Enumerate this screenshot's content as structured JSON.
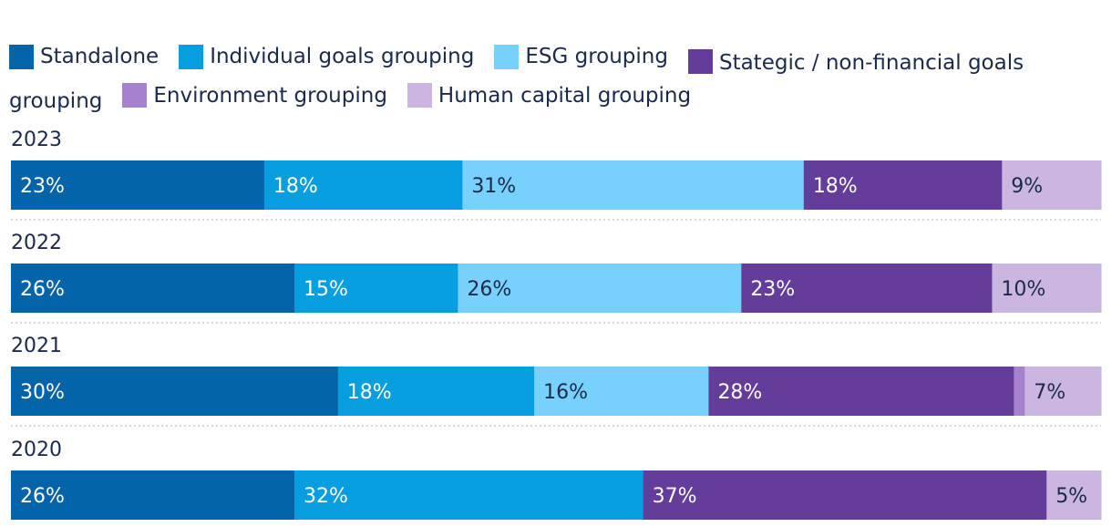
{
  "chart_data": {
    "type": "bar",
    "orientation": "horizontal-stacked-100",
    "title": "",
    "xlabel": "",
    "ylabel": "",
    "legend_position": "top",
    "categories": [
      "2023",
      "2022",
      "2021",
      "2020"
    ],
    "series": [
      {
        "name": "Standalone",
        "color": "#0563a9",
        "text_color": "#ffffff",
        "values": [
          23,
          26,
          30,
          26
        ],
        "labels": [
          "23%",
          "26%",
          "30%",
          "26%"
        ]
      },
      {
        "name": "Individual goals grouping",
        "color": "#069ede",
        "text_color": "#ffffff",
        "values": [
          18,
          15,
          18,
          32
        ],
        "labels": [
          "18%",
          "15%",
          "18%",
          "32%"
        ]
      },
      {
        "name": "ESG grouping",
        "color": "#77d1fc",
        "text_color": "#1b2a4a",
        "values": [
          31,
          26,
          16,
          0
        ],
        "labels": [
          "31%",
          "26%",
          "16%",
          ""
        ]
      },
      {
        "name": "Stategic / non-financial goals grouping",
        "color": "#643c9a",
        "text_color": "#ffffff",
        "values": [
          18,
          23,
          28,
          37
        ],
        "labels": [
          "18%",
          "23%",
          "28%",
          "37%"
        ]
      },
      {
        "name": "Environment grouping",
        "color": "#a681cc",
        "text_color": "#ffffff",
        "values": [
          0,
          0,
          1,
          0
        ],
        "labels": [
          "",
          "",
          "",
          ""
        ]
      },
      {
        "name": "Human capital grouping",
        "color": "#cbb5e1",
        "text_color": "#1b2a4a",
        "values": [
          9,
          10,
          7,
          5
        ],
        "labels": [
          "9%",
          "10%",
          "7%",
          "5%"
        ]
      }
    ]
  }
}
